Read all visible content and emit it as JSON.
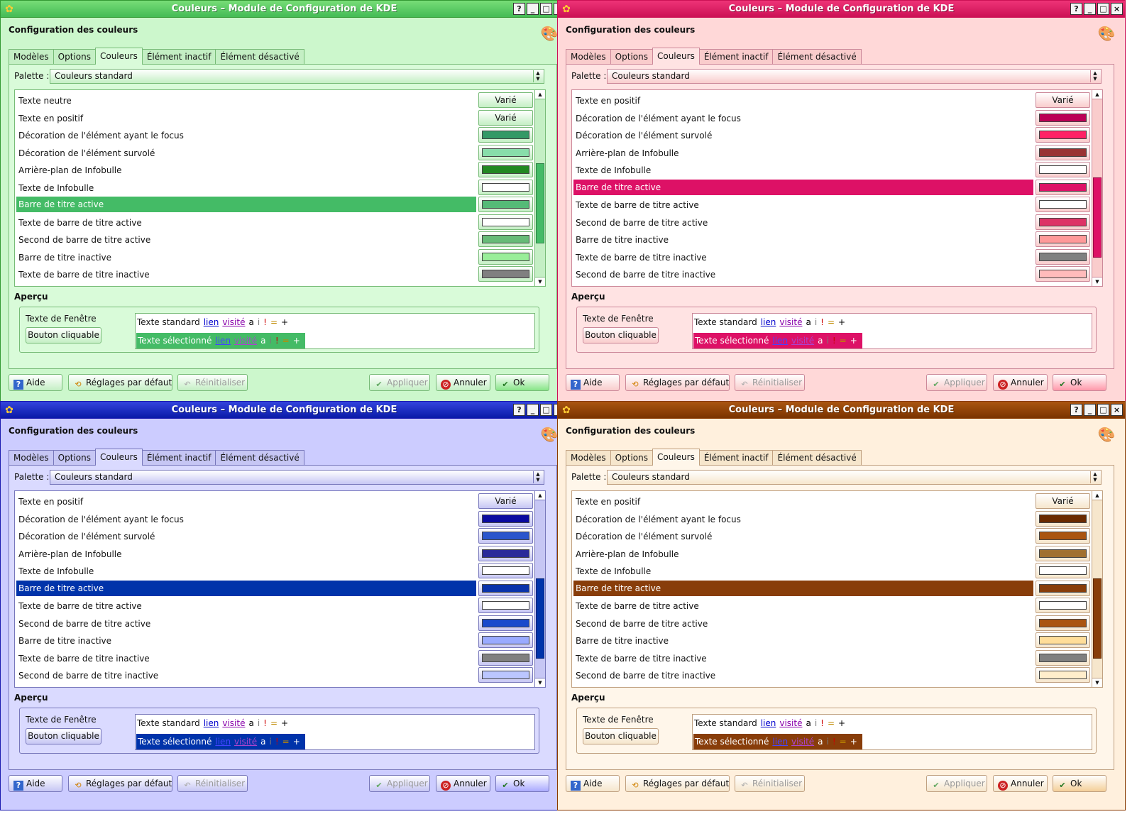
{
  "common": {
    "title": "Couleurs – Module de Configuration de KDE",
    "config_title": "Configuration des couleurs",
    "tabs": [
      "Modèles",
      "Options",
      "Couleurs",
      "Élément inactif",
      "Élément désactivé"
    ],
    "active_tab": "Couleurs",
    "palette_label": "Palette :",
    "palette_value": "Couleurs standard",
    "varie": "Varié",
    "apercu": "Aperçu",
    "preview": {
      "window_text": "Texte de Fenêtre",
      "button": "Bouton cliquable",
      "standard": "Texte standard",
      "selected": "Texte sélectionné",
      "link": "lien",
      "visited": "visité",
      "a": "a",
      "i": "i",
      "excl": "!",
      "eq": "=",
      "plus": "+"
    },
    "buttons": {
      "help": "Aide",
      "defaults": "Réglages par défaut",
      "reset": "Réinitialiser",
      "apply": "Appliquer",
      "cancel": "Annuler",
      "ok": "Ok"
    },
    "window_buttons": [
      "?",
      "_",
      "□",
      "×"
    ],
    "icons": {
      "app": "kde-color-icon",
      "config": "color-palette-icon",
      "help": "help-icon",
      "defaults": "defaults-icon",
      "reset": "reset-icon",
      "apply": "checkmark-icon",
      "cancel": "cancel-icon",
      "ok": "ok-checkmark-icon"
    }
  },
  "windows": [
    {
      "theme": "green",
      "colors": {
        "bg": "#ccf7cc",
        "panel": "#d9fbd9",
        "tabbg": "#c4efc4",
        "border": "#339933",
        "sborder": "#77bb77",
        "titlebar_top": "#77dd77",
        "titlebar_bottom": "#44bb55",
        "selection": "#44bb66",
        "ok_button": "#88e588"
      },
      "scroll_fraction": 0.36,
      "rows": [
        {
          "label": "Texte neutre",
          "varie": true
        },
        {
          "label": "Texte en positif",
          "varie": true
        },
        {
          "label": "Décoration de l'élément ayant le focus",
          "color": "#339966"
        },
        {
          "label": "Décoration de l'élément survolé",
          "color": "#88ddaa"
        },
        {
          "label": "Arrière-plan de Infobulle",
          "color": "#228822"
        },
        {
          "label": "Texte de Infobulle",
          "color": "#ffffff"
        },
        {
          "label": "Barre de titre active",
          "color": "#55bb77",
          "selected": true
        },
        {
          "label": "Texte de barre de titre active",
          "color": "#ffffff"
        },
        {
          "label": "Second de barre de titre active",
          "color": "#66bb77"
        },
        {
          "label": "Barre de titre inactive",
          "color": "#99ee99"
        },
        {
          "label": "Texte de barre de titre inactive",
          "color": "#808080"
        }
      ]
    },
    {
      "theme": "pink",
      "colors": {
        "bg": "#ffd8d8",
        "panel": "#ffe3e3",
        "tabbg": "#f9cccc",
        "border": "#cc1155",
        "sborder": "#cc8899",
        "titlebar_top": "#ee3377",
        "titlebar_bottom": "#cc1155",
        "selection": "#dd1166",
        "ok_button": "#ff99aa"
      },
      "scroll_fraction": 0.44,
      "rows": [
        {
          "label": "Texte en positif",
          "varie": true
        },
        {
          "label": "Décoration de l'élément ayant le focus",
          "color": "#bb0055"
        },
        {
          "label": "Décoration de l'élément survolé",
          "color": "#ff2266"
        },
        {
          "label": "Arrière-plan de Infobulle",
          "color": "#993333"
        },
        {
          "label": "Texte de Infobulle",
          "color": "#ffffff"
        },
        {
          "label": "Barre de titre active",
          "color": "#dd1166",
          "selected": true
        },
        {
          "label": "Texte de barre de titre active",
          "color": "#ffffff"
        },
        {
          "label": "Second de barre de titre active",
          "color": "#dd3366"
        },
        {
          "label": "Barre de titre inactive",
          "color": "#ff9999"
        },
        {
          "label": "Texte de barre de titre inactive",
          "color": "#808080"
        },
        {
          "label": "Second de barre de titre inactive",
          "color": "#ffbbbb"
        }
      ]
    },
    {
      "theme": "blue",
      "colors": {
        "bg": "#ccccff",
        "panel": "#dadaff",
        "tabbg": "#c6c6f4",
        "border": "#1a1ab0",
        "sborder": "#7777bb",
        "titlebar_top": "#3344dd",
        "titlebar_bottom": "#0a1aa8",
        "selection": "#0033aa",
        "ok_button": "#aaaaff"
      },
      "scroll_fraction": 0.44,
      "rows": [
        {
          "label": "Texte en positif",
          "varie": true
        },
        {
          "label": "Décoration de l'élément ayant le focus",
          "color": "#0a0aa0"
        },
        {
          "label": "Décoration de l'élément survolé",
          "color": "#2a55cc"
        },
        {
          "label": "Arrière-plan de Infobulle",
          "color": "#2a2a99"
        },
        {
          "label": "Texte de Infobulle",
          "color": "#ffffff"
        },
        {
          "label": "Barre de titre active",
          "color": "#0a33aa",
          "selected": true
        },
        {
          "label": "Texte de barre de titre active",
          "color": "#ffffff"
        },
        {
          "label": "Second de barre de titre active",
          "color": "#1a4acc"
        },
        {
          "label": "Barre de titre inactive",
          "color": "#99aaff"
        },
        {
          "label": "Texte de barre de titre inactive",
          "color": "#808080"
        },
        {
          "label": "Second de barre de titre inactive",
          "color": "#bbc6ff"
        }
      ]
    },
    {
      "theme": "orange",
      "colors": {
        "bg": "#fff0dd",
        "panel": "#fff6ea",
        "tabbg": "#f6e6cc",
        "border": "#8a3a00",
        "sborder": "#c0a080",
        "titlebar_top": "#aa5511",
        "titlebar_bottom": "#7a3300",
        "selection": "#883d0a",
        "ok_button": "#f4cf99"
      },
      "scroll_fraction": 0.44,
      "rows": [
        {
          "label": "Texte en positif",
          "varie": true
        },
        {
          "label": "Décoration de l'élément ayant le focus",
          "color": "#6a2a00"
        },
        {
          "label": "Décoration de l'élément survolé",
          "color": "#aa5511"
        },
        {
          "label": "Arrière-plan de Infobulle",
          "color": "#a07030"
        },
        {
          "label": "Texte de Infobulle",
          "color": "#ffffff"
        },
        {
          "label": "Barre de titre active",
          "color": "#883d0a",
          "selected": true
        },
        {
          "label": "Texte de barre de titre active",
          "color": "#ffffff"
        },
        {
          "label": "Second de barre de titre active",
          "color": "#aa5511"
        },
        {
          "label": "Barre de titre inactive",
          "color": "#ffdd99"
        },
        {
          "label": "Texte de barre de titre inactive",
          "color": "#808080"
        },
        {
          "label": "Second de barre de titre inactive",
          "color": "#ffeecc"
        }
      ]
    }
  ]
}
